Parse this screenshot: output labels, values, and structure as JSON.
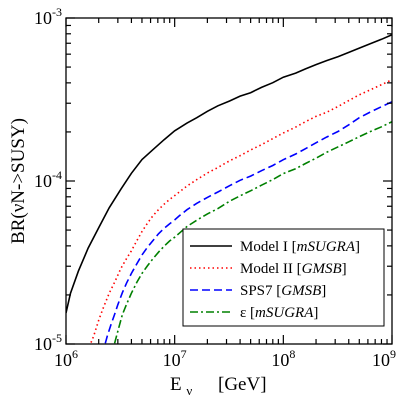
{
  "chart_data": {
    "type": "line",
    "title": "",
    "xlabel": "E",
    "xlabel_sub": "ν",
    "xlabel_unit": "[GeV]",
    "ylabel": "BR(νN->SUSY)",
    "xscale": "log",
    "yscale": "log",
    "xlim": [
      1000000,
      1000000000
    ],
    "ylim": [
      1e-05,
      0.001
    ],
    "x_ticks": [
      {
        "value": 1000000,
        "base": "10",
        "exp": "6"
      },
      {
        "value": 10000000,
        "base": "10",
        "exp": "7"
      },
      {
        "value": 100000000,
        "base": "10",
        "exp": "8"
      },
      {
        "value": 1000000000,
        "base": "10",
        "exp": "9"
      }
    ],
    "y_ticks": [
      {
        "value": 1e-05,
        "base": "10",
        "exp": "-5"
      },
      {
        "value": 0.0001,
        "base": "10",
        "exp": "-4"
      },
      {
        "value": 0.001,
        "base": "10",
        "exp": "-3"
      }
    ],
    "grid": false,
    "legend_position": "bottom-right",
    "series": [
      {
        "name": "Model I",
        "name_italic": "mSUGRA",
        "color": "#000000",
        "dash": "solid",
        "x": [
          1000000,
          1100000,
          1300000,
          1600000,
          2000000,
          2500000,
          3200000,
          4000000,
          5000000,
          6300000,
          8000000,
          10000000,
          13000000,
          16000000,
          20000000,
          25000000,
          32000000,
          40000000,
          50000000,
          63000000,
          80000000,
          100000000,
          130000000,
          160000000,
          200000000,
          250000000,
          320000000,
          400000000,
          500000000,
          630000000,
          800000000,
          1000000000
        ],
        "y": [
          1.55e-05,
          2.05e-05,
          2.8e-05,
          3.88e-05,
          5.17e-05,
          6.85e-05,
          8.91e-05,
          0.0001115,
          0.0001355,
          0.0001555,
          0.0001791,
          0.0002031,
          0.0002265,
          0.0002447,
          0.0002675,
          0.0002895,
          0.0003094,
          0.0003319,
          0.0003483,
          0.000375,
          0.0004011,
          0.0004335,
          0.0004593,
          0.0004874,
          0.000518,
          0.0005475,
          0.0005798,
          0.0006152,
          0.0006539,
          0.0006948,
          0.0007403,
          0.0007897
        ]
      },
      {
        "name": "Model II",
        "name_italic": "GMSB",
        "color": "#ff0000",
        "dash": "dotted",
        "x": [
          1700000,
          1800000,
          2000000,
          2200000,
          2500000,
          2800000,
          3200000,
          3600000,
          4000000,
          4500000,
          5000000,
          5600000,
          6300000,
          7100000,
          8000000,
          9000000,
          10000000,
          13000000,
          16000000,
          20000000,
          25000000,
          32000000,
          40000000,
          50000000,
          63000000,
          80000000,
          100000000,
          130000000,
          160000000,
          200000000,
          250000000,
          320000000,
          400000000,
          500000000,
          630000000,
          800000000,
          1000000000
        ],
        "y": [
          1.02e-05,
          1.12e-05,
          1.4e-05,
          1.66e-05,
          2.05e-05,
          2.39e-05,
          2.91e-05,
          3.34e-05,
          3.73e-05,
          4.32e-05,
          4.9e-05,
          5.49e-05,
          6.12e-05,
          6.68e-05,
          7.21e-05,
          7.71e-05,
          8.14e-05,
          9.32e-05,
          0.000102,
          0.000112,
          0.000121,
          0.000133,
          0.000143,
          0.000155,
          0.000167,
          0.000182,
          0.000197,
          0.000214,
          0.000231,
          0.000249,
          0.000264,
          0.000287,
          0.000312,
          0.000338,
          0.000362,
          0.00039,
          0.000418
        ]
      },
      {
        "name": "SPS7",
        "name_italic": "GMSB",
        "color": "#0000ff",
        "dash": "dashed",
        "x": [
          2300000,
          2400000,
          2600000,
          2800000,
          3000000,
          3300000,
          3600000,
          4000000,
          4500000,
          5000000,
          5600000,
          6300000,
          7100000,
          8000000,
          9000000,
          10000000,
          11000000,
          13000000,
          16000000,
          20000000,
          25000000,
          32000000,
          40000000,
          50000000,
          63000000,
          80000000,
          100000000,
          130000000,
          160000000,
          200000000,
          250000000,
          320000000,
          400000000,
          500000000,
          630000000,
          800000000,
          1000000000
        ],
        "y": [
          1.01e-05,
          1.12e-05,
          1.32e-05,
          1.52e-05,
          1.74e-05,
          2.06e-05,
          2.36e-05,
          2.71e-05,
          3.12e-05,
          3.52e-05,
          3.91e-05,
          4.31e-05,
          4.74e-05,
          5.12e-05,
          5.47e-05,
          5.77e-05,
          6.11e-05,
          6.67e-05,
          7.3e-05,
          7.93e-05,
          8.56e-05,
          9.36e-05,
          0.000101,
          0.0001071,
          0.0001157,
          0.0001245,
          0.0001352,
          0.0001464,
          0.0001579,
          0.0001715,
          0.0001858,
          0.0002014,
          0.0002212,
          0.0002445,
          0.0002645,
          0.0002857,
          0.0003063
        ]
      },
      {
        "name": "ε",
        "name_italic": "mSUGRA",
        "color": "#008000",
        "dash": "dash-dot",
        "x": [
          2800000,
          2900000,
          3100000,
          3300000,
          3600000,
          4000000,
          4500000,
          5000000,
          5600000,
          6300000,
          7100000,
          8000000,
          9000000,
          10000000,
          11000000,
          13000000,
          16000000,
          20000000,
          25000000,
          32000000,
          40000000,
          50000000,
          63000000,
          80000000,
          100000000,
          130000000,
          160000000,
          200000000,
          250000000,
          320000000,
          400000000,
          500000000,
          630000000,
          800000000,
          1000000000
        ],
        "y": [
          1.01e-05,
          1.1e-05,
          1.3e-05,
          1.51e-05,
          1.75e-05,
          2.05e-05,
          2.4e-05,
          2.71e-05,
          3.01e-05,
          3.33e-05,
          3.66e-05,
          3.98e-05,
          4.29e-05,
          4.52e-05,
          4.78e-05,
          5.26e-05,
          5.75e-05,
          6.28e-05,
          6.77e-05,
          7.52e-05,
          8.11e-05,
          8.71e-05,
          9.42e-05,
          0.000102,
          0.000111,
          0.000119,
          0.000128,
          0.000138,
          0.00015,
          0.000162,
          0.000174,
          0.000187,
          0.000201,
          0.000215,
          0.000231
        ]
      }
    ]
  }
}
